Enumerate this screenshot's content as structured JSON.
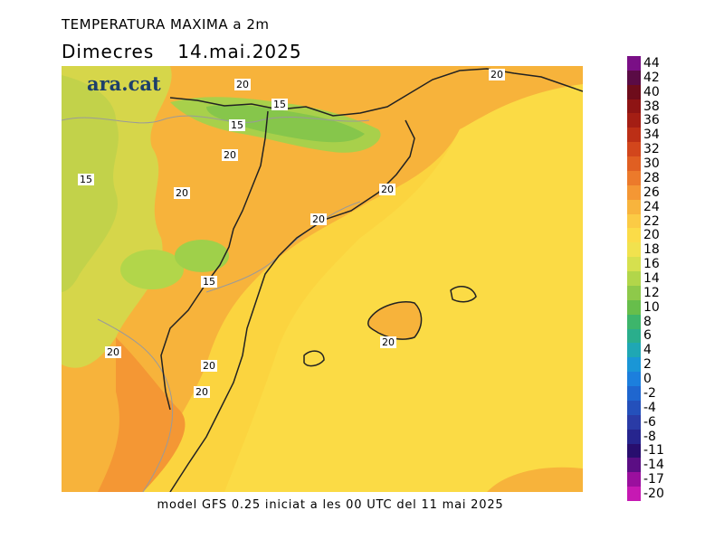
{
  "header": {
    "title": "TEMPERATURA MAXIMA a 2m",
    "day": "Dimecres",
    "date": "14.mai.2025"
  },
  "logo": {
    "text": "ara.cat"
  },
  "footer": {
    "credit": "model GFS 0.25 iniciat a les 00 UTC del 11 mai 2025"
  },
  "legend": {
    "ticks": [
      "44",
      "42",
      "40",
      "38",
      "36",
      "34",
      "32",
      "30",
      "28",
      "26",
      "24",
      "22",
      "20",
      "18",
      "16",
      "14",
      "12",
      "10",
      "8",
      "6",
      "4",
      "2",
      "0",
      "-2",
      "-4",
      "-6",
      "-8",
      "-11",
      "-14",
      "-17",
      "-20"
    ],
    "colors": [
      "#7a0f86",
      "#5a0b45",
      "#6e0c1b",
      "#8e1414",
      "#a41e14",
      "#bc2f16",
      "#d2461c",
      "#e05f22",
      "#ec7a2b",
      "#f49734",
      "#f8b43d",
      "#fbcb45",
      "#fbdc48",
      "#f1e24e",
      "#d6e04e",
      "#b2d64a",
      "#8ec94a",
      "#67be4b",
      "#3db56b",
      "#2aae8c",
      "#1fa7b4",
      "#1a96d6",
      "#1c7fdd",
      "#1f66cf",
      "#2450bb",
      "#2a3ba6",
      "#26258e",
      "#280e6e",
      "#5b0e84",
      "#9a0f9e",
      "#c619b3"
    ],
    "labels_text": [
      "20",
      "20",
      "15",
      "15",
      "20",
      "15",
      "20",
      "20",
      "20",
      "15",
      "20",
      "20",
      "20",
      "20"
    ]
  },
  "map_labels": {
    "contour_20a": "20",
    "contour_20b": "20",
    "contour_15a": "15",
    "contour_15b": "15",
    "contour_20c": "20",
    "contour_15c": "15",
    "contour_20d": "20",
    "contour_20e": "20",
    "contour_20f": "20",
    "contour_15d": "15",
    "contour_20g": "20",
    "contour_20h": "20",
    "contour_20i": "20",
    "contour_20j": "20"
  }
}
